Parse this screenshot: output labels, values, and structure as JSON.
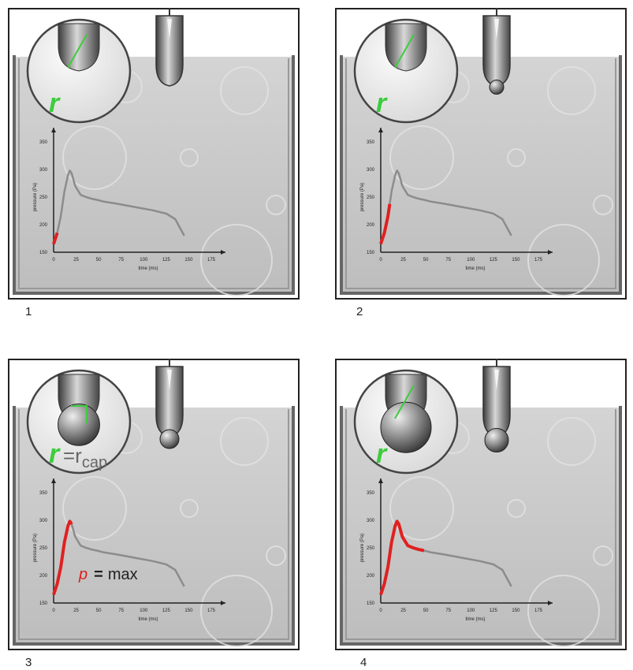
{
  "figure": {
    "panels": [
      {
        "number": "1",
        "circle_label": "r",
        "circle_label_suffix": "",
        "red_until": 4,
        "drop_size": 0,
        "drop_tip": 0,
        "annotation": false
      },
      {
        "number": "2",
        "circle_label": "r",
        "circle_label_suffix": "",
        "red_until": 10,
        "drop_size": 0,
        "drop_tip": 0.5,
        "annotation": false
      },
      {
        "number": "3",
        "circle_label": "r",
        "circle_label_suffix": "=r",
        "circle_label_sub": "cap",
        "red_until": 20,
        "drop_size": 0.6,
        "drop_tip": 1,
        "annotation": true
      },
      {
        "number": "4",
        "circle_label": "r",
        "circle_label_suffix": "",
        "red_until": 48,
        "drop_size": 1,
        "drop_tip": 1.5,
        "annotation": false
      }
    ],
    "annotation": {
      "p": "p",
      "eq": "=",
      "max": "max"
    },
    "axis": {
      "xlabel": "time (ms)",
      "ylabel": "pressure (Pa)",
      "xticks": [
        "0",
        "25",
        "50",
        "75",
        "100",
        "125",
        "150",
        "175"
      ],
      "yticks": [
        "150",
        "200",
        "250",
        "300",
        "350"
      ]
    },
    "colors": {
      "accent_label": "#3ccc3c",
      "red_trace": "#e02020",
      "grey_trace": "#8c8c8c",
      "annotation_p": "#e02020"
    }
  },
  "chart_data": {
    "type": "line",
    "title": "",
    "xlabel": "time (ms)",
    "ylabel": "pressure (Pa)",
    "xlim": [
      0,
      175
    ],
    "ylim": [
      150,
      350
    ],
    "series": [
      {
        "x": [
          0,
          4,
          8,
          12,
          16,
          18,
          20,
          24,
          30,
          36,
          42,
          48,
          55,
          70,
          90,
          110,
          125,
          135,
          140,
          145
        ],
        "y": [
          165,
          185,
          215,
          260,
          290,
          298,
          293,
          270,
          254,
          250,
          247,
          245,
          242,
          238,
          232,
          226,
          220,
          210,
          195,
          180
        ]
      }
    ]
  }
}
